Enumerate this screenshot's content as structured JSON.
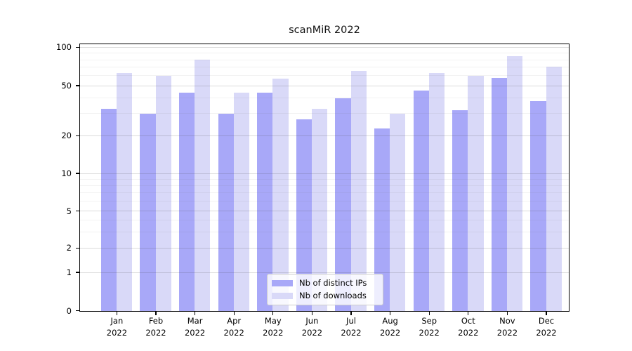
{
  "title": "scanMiR 2022",
  "chart_data": {
    "type": "bar",
    "title": "scanMiR 2022",
    "categories": [
      "Jan",
      "Feb",
      "Mar",
      "Apr",
      "May",
      "Jun",
      "Jul",
      "Aug",
      "Sep",
      "Oct",
      "Nov",
      "Dec"
    ],
    "year_label": "2022",
    "series": [
      {
        "name": "Nb of distinct IPs",
        "color": "#a8a8f8",
        "values": [
          33,
          30,
          44,
          30,
          44,
          27,
          40,
          23,
          46,
          32,
          58,
          38
        ]
      },
      {
        "name": "Nb of downloads",
        "color": "#d9d9f8",
        "values": [
          63,
          60,
          80,
          44,
          57,
          33,
          66,
          30,
          63,
          60,
          86,
          71
        ]
      }
    ],
    "y_axis": {
      "scale": "symlog",
      "ticks": [
        0,
        1,
        2,
        5,
        10,
        20,
        50,
        100
      ],
      "minor_gridlines": [
        3,
        4,
        6,
        7,
        8,
        9,
        30,
        40,
        60,
        70,
        80,
        90
      ],
      "range": [
        0,
        105
      ]
    },
    "x_axis": {
      "label_line2": "2022"
    },
    "legend": {
      "position": "bottom-center"
    },
    "grid": "on",
    "colors": {
      "axis": "#000000",
      "background": "#ffffff"
    }
  }
}
